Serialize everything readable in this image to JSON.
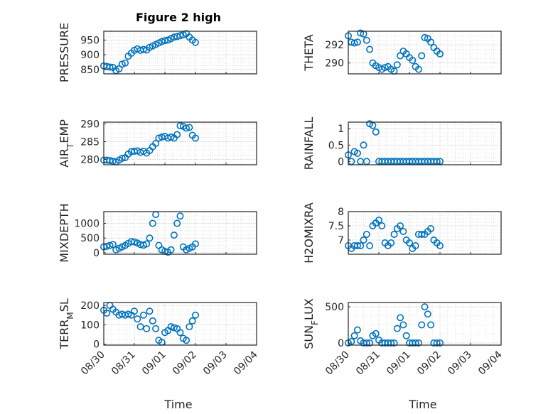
{
  "figure": {
    "title": "Figure 2 high",
    "bg": "#ffffff",
    "marker_color": "#0072bd"
  },
  "x_axis": {
    "label": "Time",
    "ticks": [
      "08/30",
      "08/31",
      "09/01",
      "09/02",
      "09/03",
      "09/04"
    ],
    "range_days": [
      0,
      5
    ]
  },
  "chart_data": [
    {
      "type": "scatter",
      "title": "Figure 2 high",
      "ylabel": "PRESSURE",
      "ylim": [
        835,
        980
      ],
      "yticks": [
        850,
        900,
        950
      ],
      "grid": true,
      "x": [
        0.0,
        0.1,
        0.2,
        0.3,
        0.4,
        0.5,
        0.6,
        0.7,
        0.8,
        0.9,
        1.0,
        1.1,
        1.2,
        1.3,
        1.4,
        1.5,
        1.6,
        1.7,
        1.8,
        1.9,
        2.0,
        2.1,
        2.2,
        2.3,
        2.4,
        2.5,
        2.6,
        2.7,
        2.8,
        2.9,
        3.0
      ],
      "y": [
        862,
        860,
        858,
        857,
        846,
        852,
        868,
        872,
        895,
        905,
        915,
        920,
        915,
        918,
        916,
        925,
        930,
        935,
        940,
        945,
        948,
        950,
        955,
        960,
        962,
        965,
        968,
        972,
        960,
        950,
        942
      ]
    },
    {
      "type": "scatter",
      "ylabel": "THETA",
      "ylim": [
        288.8,
        293.5
      ],
      "yticks": [
        290,
        292
      ],
      "grid": true,
      "x": [
        0.0,
        0.1,
        0.2,
        0.3,
        0.4,
        0.5,
        0.6,
        0.7,
        0.8,
        0.9,
        1.0,
        1.1,
        1.2,
        1.3,
        1.4,
        1.5,
        1.6,
        1.7,
        1.8,
        1.9,
        2.0,
        2.1,
        2.2,
        2.3,
        2.4,
        2.5,
        2.6,
        2.7,
        2.8,
        2.9,
        3.0
      ],
      "y": [
        293.0,
        292.3,
        292.2,
        292.3,
        293.3,
        293.2,
        292.5,
        291.5,
        290.0,
        289.7,
        289.5,
        289.3,
        289.5,
        289.6,
        289.3,
        289.1,
        289.8,
        290.8,
        291.3,
        291.0,
        290.6,
        290.3,
        289.6,
        289.3,
        290.8,
        292.8,
        292.7,
        292.3,
        291.7,
        291.3,
        291.0
      ]
    },
    {
      "type": "scatter",
      "ylabel": "AIR_TEMP",
      "ylim": [
        278.5,
        290.5
      ],
      "yticks": [
        280,
        285,
        290
      ],
      "grid": true,
      "x": [
        0.0,
        0.1,
        0.2,
        0.3,
        0.4,
        0.5,
        0.6,
        0.7,
        0.8,
        0.9,
        1.0,
        1.1,
        1.2,
        1.3,
        1.4,
        1.5,
        1.6,
        1.7,
        1.8,
        1.9,
        2.0,
        2.1,
        2.2,
        2.3,
        2.4,
        2.5,
        2.6,
        2.7,
        2.8,
        2.9,
        3.0
      ],
      "y": [
        279.8,
        279.8,
        279.7,
        279.5,
        279.3,
        279.8,
        280.3,
        280.5,
        281.5,
        282.2,
        282.3,
        282.4,
        282.0,
        282.3,
        281.8,
        282.5,
        283.6,
        284.5,
        286.0,
        286.3,
        286.5,
        286.0,
        286.3,
        286.0,
        287.0,
        289.5,
        289.3,
        288.8,
        289.0,
        286.8,
        286.0
      ]
    },
    {
      "type": "scatter",
      "ylabel": "RAINFALL",
      "ylim": [
        -0.1,
        1.2
      ],
      "yticks": [
        0,
        0.5,
        1
      ],
      "grid": true,
      "x": [
        0.0,
        0.1,
        0.2,
        0.3,
        0.4,
        0.5,
        0.6,
        0.7,
        0.8,
        0.9,
        1.0,
        1.1,
        1.2,
        1.3,
        1.4,
        1.5,
        1.6,
        1.7,
        1.8,
        1.9,
        2.0,
        2.1,
        2.2,
        2.3,
        2.4,
        2.5,
        2.6,
        2.7,
        2.8,
        2.9,
        3.0
      ],
      "y": [
        0.2,
        0.0,
        0.3,
        0.25,
        0.0,
        0.5,
        0.0,
        1.15,
        1.1,
        0.9,
        0.0,
        0.0,
        0.0,
        0.0,
        0.0,
        0.0,
        0.0,
        0.0,
        0.0,
        0.0,
        0.0,
        0.0,
        0.0,
        0.0,
        0.0,
        0.0,
        0.0,
        0.0,
        0.0,
        0.0,
        0.0
      ]
    },
    {
      "type": "scatter",
      "ylabel": "MIXDEPTH",
      "ylim": [
        -50,
        1400
      ],
      "yticks": [
        0,
        500,
        1000
      ],
      "grid": true,
      "x": [
        0.0,
        0.1,
        0.2,
        0.3,
        0.4,
        0.5,
        0.6,
        0.7,
        0.8,
        0.9,
        1.0,
        1.1,
        1.2,
        1.3,
        1.4,
        1.5,
        1.6,
        1.7,
        1.8,
        1.9,
        2.0,
        2.1,
        2.2,
        2.3,
        2.4,
        2.5,
        2.6,
        2.7,
        2.8,
        2.9,
        3.0
      ],
      "y": [
        200,
        220,
        250,
        280,
        100,
        150,
        200,
        250,
        320,
        380,
        370,
        330,
        280,
        260,
        300,
        500,
        1000,
        1300,
        250,
        100,
        50,
        20,
        100,
        600,
        1000,
        1250,
        200,
        100,
        150,
        200,
        300
      ]
    },
    {
      "type": "scatter",
      "ylabel": "H2OMIXRA",
      "ylim": [
        6.5,
        8.0
      ],
      "yticks": [
        7,
        7.5,
        8
      ],
      "grid": true,
      "x": [
        0.0,
        0.1,
        0.2,
        0.3,
        0.4,
        0.5,
        0.6,
        0.7,
        0.8,
        0.9,
        1.0,
        1.1,
        1.2,
        1.3,
        1.4,
        1.5,
        1.6,
        1.7,
        1.8,
        1.9,
        2.0,
        2.1,
        2.2,
        2.3,
        2.4,
        2.5,
        2.6,
        2.7,
        2.8,
        2.9,
        3.0
      ],
      "y": [
        6.8,
        6.7,
        6.8,
        6.8,
        6.8,
        7.0,
        7.2,
        6.8,
        7.5,
        7.6,
        7.7,
        7.5,
        6.9,
        6.8,
        6.9,
        7.2,
        7.4,
        7.5,
        7.3,
        7.0,
        6.9,
        6.7,
        6.8,
        7.2,
        7.2,
        7.2,
        7.3,
        7.4,
        7.0,
        6.9,
        6.8
      ]
    },
    {
      "type": "scatter",
      "ylabel": "TERR_MSL",
      "ylim": [
        -5,
        215
      ],
      "yticks": [
        0,
        100,
        200
      ],
      "grid": true,
      "x": [
        0.0,
        0.1,
        0.2,
        0.3,
        0.4,
        0.5,
        0.6,
        0.7,
        0.8,
        0.9,
        1.0,
        1.1,
        1.2,
        1.3,
        1.4,
        1.5,
        1.6,
        1.7,
        1.8,
        1.9,
        2.0,
        2.1,
        2.2,
        2.3,
        2.4,
        2.5,
        2.6,
        2.7,
        2.8,
        2.9,
        3.0
      ],
      "y": [
        175,
        160,
        200,
        180,
        165,
        150,
        155,
        150,
        155,
        150,
        170,
        130,
        90,
        150,
        80,
        170,
        120,
        80,
        20,
        10,
        60,
        70,
        90,
        85,
        80,
        60,
        30,
        20,
        90,
        120,
        150
      ]
    },
    {
      "type": "scatter",
      "ylabel": "SUN_FLUX",
      "ylim": [
        -30,
        560
      ],
      "yticks": [
        0,
        500
      ],
      "grid": true,
      "x": [
        0.0,
        0.1,
        0.2,
        0.3,
        0.4,
        0.5,
        0.6,
        0.7,
        0.8,
        0.9,
        1.0,
        1.1,
        1.2,
        1.3,
        1.4,
        1.5,
        1.6,
        1.7,
        1.8,
        1.9,
        2.0,
        2.1,
        2.2,
        2.3,
        2.4,
        2.5,
        2.6,
        2.7,
        2.8,
        2.9,
        3.0
      ],
      "y": [
        0,
        20,
        100,
        180,
        30,
        0,
        0,
        0,
        100,
        130,
        40,
        0,
        0,
        0,
        0,
        0,
        200,
        350,
        250,
        100,
        0,
        0,
        0,
        0,
        250,
        500,
        400,
        250,
        0,
        0,
        0
      ]
    }
  ]
}
